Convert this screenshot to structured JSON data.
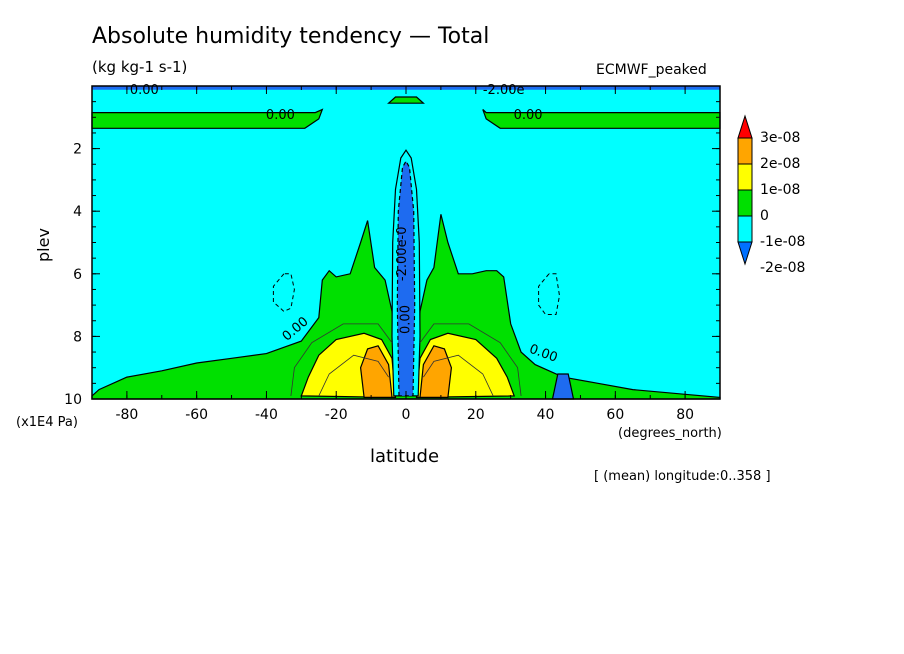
{
  "chart_data": {
    "type": "contour",
    "title": "Absolute humidity tendency — Total",
    "units": "(kg kg-1 s-1)",
    "dataset": "ECMWF_peaked",
    "xlabel": "latitude",
    "x_units": "(degrees_north)",
    "ylabel": "plev",
    "y_units": "(x1E4 Pa)",
    "subtitle": "[ (mean) longitude:0..358 ]",
    "xlim": [
      -90,
      90
    ],
    "ylim": [
      10,
      0
    ],
    "x_ticks": [
      -80,
      -60,
      -40,
      -20,
      0,
      20,
      40,
      60,
      80
    ],
    "y_ticks": [
      2,
      4,
      6,
      8,
      10
    ],
    "contour_labels": [
      {
        "text": "0.00",
        "x": -75,
        "y": 0.1
      },
      {
        "text": "-2.00e",
        "x": 28,
        "y": 0.1
      },
      {
        "text": "0.00",
        "x": -36,
        "y": 0.9
      },
      {
        "text": "0.00",
        "x": 35,
        "y": 0.9
      },
      {
        "text": "0.00",
        "x": -31,
        "y": 7.7
      },
      {
        "text": "0.00",
        "x": 39,
        "y": 8.5
      },
      {
        "text": "-2.00e-0",
        "x": 0,
        "y": 5.2
      },
      {
        "text": "0.00",
        "x": 1,
        "y": 7.3
      }
    ],
    "legend": {
      "position": "right",
      "levels": [
        {
          "label": "3e-08",
          "color": "#ff0000"
        },
        {
          "label": "2e-08",
          "color": "#ffa500"
        },
        {
          "label": "1e-08",
          "color": "#ffff00"
        },
        {
          "label": "0",
          "color": "#00e000"
        },
        {
          "label": "-1e-08",
          "color": "#00ffff"
        },
        {
          "label": "-2e-08",
          "color": "#0070ff"
        }
      ]
    },
    "colors": {
      "cyan": "#00ffff",
      "green": "#00e000",
      "yellow": "#ffff00",
      "orange": "#ffa500",
      "blue": "#1e6bf0",
      "red": "#ff0000",
      "sky": "#0090ff"
    }
  }
}
